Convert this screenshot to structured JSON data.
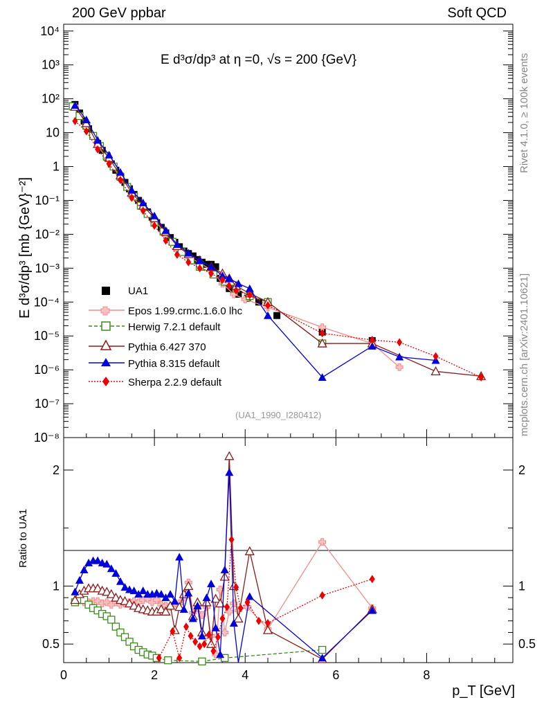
{
  "header": {
    "left": "200 GeV ppbar",
    "right": "Soft QCD",
    "plot_title": "E  d³σ/dp³ at η =0, √s = 200 {GeV}",
    "ref_tag": "(UA1_1990_I280412)"
  },
  "side_labels": {
    "rivet": "Rivet 4.1.0, ≥ 100k events",
    "mcplots": "mcplots.cern.ch [arXiv:2401.10621]"
  },
  "axes": {
    "ylabel_main": "E d³σ/dp³ [mb {GeV}⁻²]",
    "ylabel_ratio": "Ratio to UA1",
    "xlabel": "p_T [GeV]",
    "x_range": [
      0,
      9.9
    ],
    "y_main_range_log10": [
      -8,
      4.2
    ],
    "y_ratio_range": [
      0.34,
      2.28
    ],
    "x_ticks": [
      0,
      2,
      4,
      6,
      8
    ],
    "x_tick_labels": [
      "0",
      "2",
      "4",
      "6",
      "8"
    ],
    "y_main_tick_labels": [
      "10⁻⁸",
      "10⁻⁷",
      "10⁻⁶",
      "10⁻⁵",
      "10⁻⁴",
      "10⁻³",
      "10⁻²",
      "10⁻¹",
      "1",
      "10",
      "10²",
      "10³",
      "10⁴"
    ],
    "y_ratio_tick_labels": [
      "0.5",
      "1",
      "2"
    ],
    "y_ratio_ticks": [
      0.5,
      1,
      2
    ]
  },
  "legend": [
    {
      "label": "UA1",
      "color": "#000000",
      "marker": "square"
    },
    {
      "label": "Epos 1.99.crmc.1.6.0 lhc",
      "color": "#f28c8c",
      "marker": "cross"
    },
    {
      "label": "Herwig 7.2.1 default",
      "color": "#3a8c1a",
      "marker": "open-square"
    },
    {
      "label": "Pythia 6.427 370",
      "color": "#8b1a1a",
      "marker": "open-triangle"
    },
    {
      "label": "Pythia 8.315 default",
      "color": "#0000dd",
      "marker": "triangle"
    },
    {
      "label": "Sherpa 2.2.9 default",
      "color": "#ee0000",
      "marker": "diamond"
    }
  ],
  "chart_data": {
    "type": "scatter",
    "title": "E d3sigma/dp3 at eta=0, sqrt(s) = 200 GeV",
    "xlabel": "p_T [GeV]",
    "ylabel": "E d3sigma/dp3 [mb GeV^-2]",
    "yscale": "log",
    "ratio_reference": "UA1",
    "series": [
      {
        "name": "UA1",
        "x": [
          0.25,
          0.35,
          0.45,
          0.55,
          0.65,
          0.75,
          0.85,
          0.95,
          1.05,
          1.15,
          1.25,
          1.35,
          1.45,
          1.55,
          1.65,
          1.75,
          1.85,
          1.95,
          2.05,
          2.15,
          2.25,
          2.35,
          2.45,
          2.55,
          2.65,
          2.75,
          2.85,
          2.95,
          3.05,
          3.15,
          3.25,
          3.35,
          3.45,
          3.55,
          3.65,
          3.75,
          3.85,
          4.05,
          4.3,
          4.7,
          5.7,
          6.8
        ],
        "y": [
          68,
          38,
          22,
          13,
          7.8,
          4.8,
          3.0,
          1.9,
          1.2,
          0.78,
          0.52,
          0.34,
          0.22,
          0.15,
          0.1,
          0.068,
          0.046,
          0.032,
          0.022,
          0.016,
          0.011,
          0.008,
          0.0058,
          0.0043,
          0.0032,
          0.0027,
          0.0023,
          0.0018,
          0.0015,
          0.0013,
          0.0013,
          0.0011,
          0.0005,
          0.0004,
          0.00025,
          0.0002,
          0.00017,
          0.00013,
          0.0001,
          4e-05,
          1.3e-05,
          7.3e-06
        ]
      },
      {
        "name": "Epos 1.99.crmc.1.6.0 lhc",
        "x": [
          0.25,
          0.5,
          0.75,
          1.0,
          1.25,
          1.5,
          1.75,
          2.0,
          2.25,
          2.5,
          2.75,
          3.0,
          3.25,
          3.5,
          3.75,
          4.0,
          4.5,
          5.7,
          6.8,
          7.4
        ],
        "y": [
          60,
          18,
          4.0,
          1.5,
          0.45,
          0.13,
          0.06,
          0.027,
          0.01,
          0.0037,
          0.0022,
          0.0014,
          0.0009,
          0.00035,
          0.00017,
          0.00012,
          7e-05,
          1.8e-05,
          6e-06,
          1.2e-06
        ]
      },
      {
        "name": "Herwig 7.2.1 default",
        "x": [
          0.2,
          0.35,
          0.5,
          0.65,
          0.8,
          0.95,
          1.1,
          1.25,
          1.4,
          1.55,
          1.7,
          1.85,
          2.0,
          2.2,
          2.4,
          2.6,
          2.8,
          3.0,
          3.3,
          3.55,
          3.8,
          4.1,
          4.5,
          5.7
        ],
        "y": [
          60,
          31,
          16,
          8.0,
          4.0,
          2.0,
          1.0,
          0.5,
          0.25,
          0.13,
          0.07,
          0.04,
          0.022,
          0.012,
          0.006,
          0.003,
          0.0017,
          0.0011,
          0.00065,
          0.0004,
          0.00025,
          0.00015,
          0.0001,
          6e-06
        ]
      },
      {
        "name": "Pythia 6.427 370",
        "x": [
          0.25,
          0.5,
          0.75,
          1.0,
          1.25,
          1.5,
          1.75,
          2.0,
          2.25,
          2.5,
          2.75,
          3.0,
          3.25,
          3.5,
          3.65,
          3.8,
          4.1,
          4.5,
          5.7,
          6.8,
          8.2,
          9.2
        ],
        "y": [
          58,
          19,
          4.6,
          1.8,
          0.55,
          0.17,
          0.07,
          0.03,
          0.012,
          0.0045,
          0.0026,
          0.0017,
          0.0011,
          0.0007,
          0.0005,
          0.0003,
          0.00018,
          0.0001,
          6e-06,
          6e-06,
          9e-07,
          6.5e-07
        ]
      },
      {
        "name": "Pythia 8.315 default",
        "x": [
          0.25,
          0.5,
          0.75,
          1.0,
          1.25,
          1.5,
          1.75,
          2.0,
          2.25,
          2.5,
          2.75,
          3.0,
          3.25,
          3.5,
          3.65,
          3.85,
          4.1,
          4.5,
          5.7,
          6.8,
          7.4,
          8.2
        ],
        "y": [
          64,
          24,
          6.0,
          2.2,
          0.68,
          0.2,
          0.085,
          0.035,
          0.013,
          0.005,
          0.0028,
          0.0017,
          0.0011,
          0.0006,
          0.0005,
          0.00035,
          0.00025,
          4e-05,
          6e-07,
          5e-06,
          2.4e-06,
          1.9e-06
        ]
      },
      {
        "name": "Sherpa 2.2.9 default",
        "x": [
          0.25,
          0.5,
          0.75,
          1.0,
          1.25,
          1.5,
          1.75,
          2.0,
          2.25,
          2.5,
          2.75,
          3.0,
          3.25,
          3.5,
          3.65,
          3.8,
          4.1,
          4.5,
          5.7,
          6.8,
          7.4,
          8.2,
          9.2
        ],
        "y": [
          22,
          11,
          3.2,
          1.2,
          0.4,
          0.12,
          0.05,
          0.018,
          0.0065,
          0.0025,
          0.0015,
          0.001,
          0.0007,
          0.00045,
          0.0003,
          0.00022,
          0.00016,
          8e-05,
          1.2e-05,
          7.6e-06,
          6.5e-06,
          2.5e-06,
          6e-07
        ]
      }
    ],
    "ratio_series": [
      {
        "name": "Epos 1.99.crmc.1.6.0 lhc",
        "x": [
          0.25,
          0.35,
          0.45,
          0.55,
          0.65,
          0.75,
          0.85,
          0.95,
          1.05,
          1.15,
          1.25,
          1.35,
          1.45,
          1.55,
          1.65,
          1.75,
          1.85,
          1.95,
          2.05,
          2.15,
          2.25,
          2.35,
          2.45,
          2.55,
          2.65,
          2.75,
          2.85,
          2.95,
          3.05,
          3.15,
          3.25,
          3.35,
          3.45,
          3.55,
          3.65,
          3.75,
          3.85,
          4.05,
          4.5,
          5.7,
          6.8
        ],
        "y": [
          0.86,
          0.88,
          0.86,
          0.86,
          0.87,
          0.87,
          0.85,
          0.86,
          0.84,
          0.86,
          0.84,
          0.85,
          0.86,
          0.87,
          0.86,
          0.88,
          0.89,
          0.86,
          0.88,
          0.84,
          0.83,
          0.82,
          0.85,
          0.85,
          0.9,
          1.03,
          0.77,
          0.81,
          0.75,
          0.82,
          0.57,
          0.41,
          0.97,
          0.6,
          0.78,
          0.85,
          0.79,
          0.82,
          0.63,
          1.38,
          0.81
        ]
      },
      {
        "name": "Herwig 7.2.1 default",
        "x": [
          0.25,
          0.35,
          0.45,
          0.55,
          0.65,
          0.75,
          0.85,
          0.95,
          1.05,
          1.15,
          1.25,
          1.35,
          1.45,
          1.55,
          1.65,
          1.75,
          1.85,
          1.95,
          2.05,
          2.3,
          3.05,
          3.55,
          5.7
        ],
        "y": [
          0.86,
          0.88,
          0.88,
          0.84,
          0.81,
          0.79,
          0.76,
          0.74,
          0.71,
          0.65,
          0.6,
          0.56,
          0.52,
          0.48,
          0.45,
          0.43,
          0.41,
          0.4,
          0.38,
          0.36,
          0.35,
          0.38,
          0.45
        ]
      },
      {
        "name": "Pythia 6.427 370",
        "x": [
          0.25,
          0.35,
          0.45,
          0.55,
          0.65,
          0.75,
          0.85,
          0.95,
          1.05,
          1.15,
          1.25,
          1.35,
          1.45,
          1.55,
          1.65,
          1.75,
          1.85,
          1.95,
          2.05,
          2.15,
          2.25,
          2.35,
          2.45,
          2.55,
          2.65,
          2.75,
          2.85,
          2.95,
          3.05,
          3.15,
          3.25,
          3.35,
          3.45,
          3.55,
          3.65,
          3.75,
          3.85,
          4.1,
          4.5,
          5.7,
          6.8
        ],
        "y": [
          0.88,
          0.93,
          0.96,
          0.98,
          0.98,
          0.98,
          0.96,
          0.95,
          0.93,
          0.9,
          0.88,
          0.87,
          0.85,
          0.83,
          0.81,
          0.8,
          0.79,
          0.78,
          0.78,
          0.8,
          0.78,
          0.83,
          0.62,
          0.82,
          0.93,
          1.0,
          0.74,
          0.86,
          0.6,
          0.86,
          0.5,
          0.89,
          0.85,
          1.08,
          2.12,
          1.0,
          0.72,
          1.3,
          0.62,
          0.37,
          0.8
        ]
      },
      {
        "name": "Pythia 8.315 default",
        "x": [
          0.25,
          0.35,
          0.45,
          0.55,
          0.65,
          0.75,
          0.85,
          0.95,
          1.05,
          1.15,
          1.25,
          1.35,
          1.45,
          1.55,
          1.65,
          1.75,
          1.85,
          1.95,
          2.05,
          2.15,
          2.25,
          2.35,
          2.45,
          2.55,
          2.65,
          2.75,
          2.85,
          2.95,
          3.05,
          3.15,
          3.25,
          3.35,
          3.45,
          3.55,
          3.65,
          3.75,
          3.85,
          4.1,
          5.7,
          6.8
        ],
        "y": [
          0.95,
          1.05,
          1.14,
          1.2,
          1.22,
          1.22,
          1.2,
          1.19,
          1.15,
          1.11,
          1.04,
          0.99,
          0.97,
          0.96,
          0.93,
          0.96,
          0.93,
          0.93,
          0.94,
          0.93,
          0.9,
          0.93,
          0.87,
          1.25,
          0.8,
          0.94,
          0.72,
          0.83,
          0.57,
          0.9,
          1.02,
          0.64,
          0.41,
          1.14,
          1.98,
          0.68,
          0.33,
          0.91,
          0.38,
          0.79
        ]
      },
      {
        "name": "Sherpa 2.2.9 default",
        "x": [
          2.1,
          2.4,
          2.55,
          2.7,
          2.8,
          2.9,
          3.0,
          3.1,
          3.2,
          3.3,
          3.4,
          3.5,
          3.6,
          3.7,
          3.8,
          3.9,
          4.05,
          4.3,
          4.5,
          5.7,
          6.8
        ],
        "y": [
          0.38,
          0.61,
          0.38,
          0.65,
          0.57,
          0.52,
          0.48,
          0.5,
          0.58,
          0.44,
          0.56,
          0.72,
          0.82,
          1.4,
          0.99,
          0.81,
          0.86,
          0.7,
          0.68,
          0.92,
          1.06
        ]
      }
    ]
  }
}
